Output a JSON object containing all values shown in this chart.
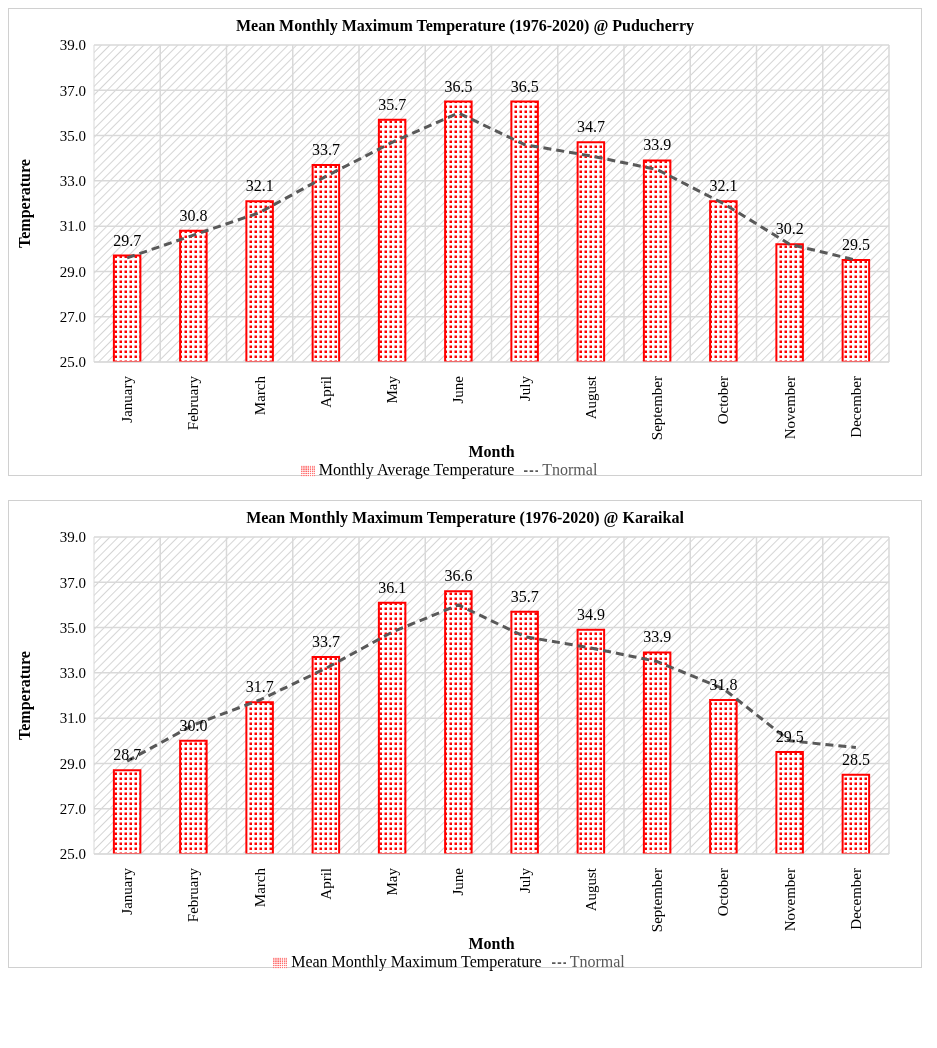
{
  "chart_data": [
    {
      "type": "bar",
      "title": "Mean Monthly Maximum Temperature (1976-2020) @ Puducherry",
      "xlabel": "Month",
      "ylabel": "Temperature",
      "categories": [
        "January",
        "February",
        "March",
        "April",
        "May",
        "June",
        "July",
        "August",
        "September",
        "October",
        "November",
        "December"
      ],
      "series": [
        {
          "name": "Monthly Average Temperature",
          "color": "#ff0000",
          "values": [
            29.7,
            30.8,
            32.1,
            33.7,
            35.7,
            36.5,
            36.5,
            34.7,
            33.9,
            32.1,
            30.2,
            29.5
          ],
          "value_labels": [
            "29.7",
            "30.8",
            "32.1",
            "33.7",
            "35.7",
            "36.5",
            "36.5",
            "34.7",
            "33.9",
            "32.1",
            "30.2",
            "29.5"
          ]
        },
        {
          "name": "Tnormal",
          "type": "line",
          "color": "#595959",
          "values": [
            29.6,
            30.6,
            31.6,
            33.2,
            34.7,
            36.0,
            34.6,
            34.1,
            33.5,
            32.0,
            30.2,
            29.5
          ]
        }
      ],
      "ylim": [
        25,
        39
      ],
      "yticks": [
        {
          "value": 25,
          "label": "25.0"
        },
        {
          "value": 27,
          "label": "27.0"
        },
        {
          "value": 29,
          "label": "29.0"
        },
        {
          "value": 31,
          "label": "31.0"
        },
        {
          "value": 33,
          "label": "33.0"
        },
        {
          "value": 35,
          "label": "35.0"
        },
        {
          "value": 37,
          "label": "37.0"
        },
        {
          "value": 39,
          "label": "39.0"
        }
      ],
      "grid": true,
      "legend": "bottom",
      "marker": "none",
      "line_style": "dashed"
    },
    {
      "type": "bar",
      "title": "Mean Monthly Maximum Temperature (1976-2020) @ Karaikal",
      "xlabel": "Month",
      "ylabel": "Temperature",
      "categories": [
        "January",
        "February",
        "March",
        "April",
        "May",
        "June",
        "July",
        "August",
        "September",
        "October",
        "November",
        "December"
      ],
      "series": [
        {
          "name": "Mean Monthly Maximum Temperature",
          "color": "#ff0000",
          "values": [
            28.7,
            30.0,
            31.7,
            33.7,
            36.1,
            36.6,
            35.7,
            34.9,
            33.9,
            31.8,
            29.5,
            28.5
          ],
          "value_labels": [
            "28.7",
            "30.0",
            "31.7",
            "33.7",
            "36.1",
            "36.6",
            "35.7",
            "34.9",
            "33.9",
            "31.8",
            "29.5",
            "28.5"
          ]
        },
        {
          "name": "Tnormal",
          "type": "line",
          "color": "#595959",
          "values": [
            29.1,
            30.7,
            31.8,
            33.2,
            34.8,
            36.0,
            34.6,
            34.1,
            33.5,
            32.3,
            30.0,
            29.7
          ]
        }
      ],
      "ylim": [
        25,
        39
      ],
      "yticks": [
        {
          "value": 25,
          "label": "25.0"
        },
        {
          "value": 27,
          "label": "27.0"
        },
        {
          "value": 29,
          "label": "29.0"
        },
        {
          "value": 31,
          "label": "31.0"
        },
        {
          "value": 33,
          "label": "33.0"
        },
        {
          "value": 35,
          "label": "35.0"
        },
        {
          "value": 37,
          "label": "37.0"
        },
        {
          "value": 39,
          "label": "39.0"
        }
      ],
      "grid": true,
      "legend": "bottom",
      "marker": "none",
      "line_style": "dashed"
    }
  ]
}
